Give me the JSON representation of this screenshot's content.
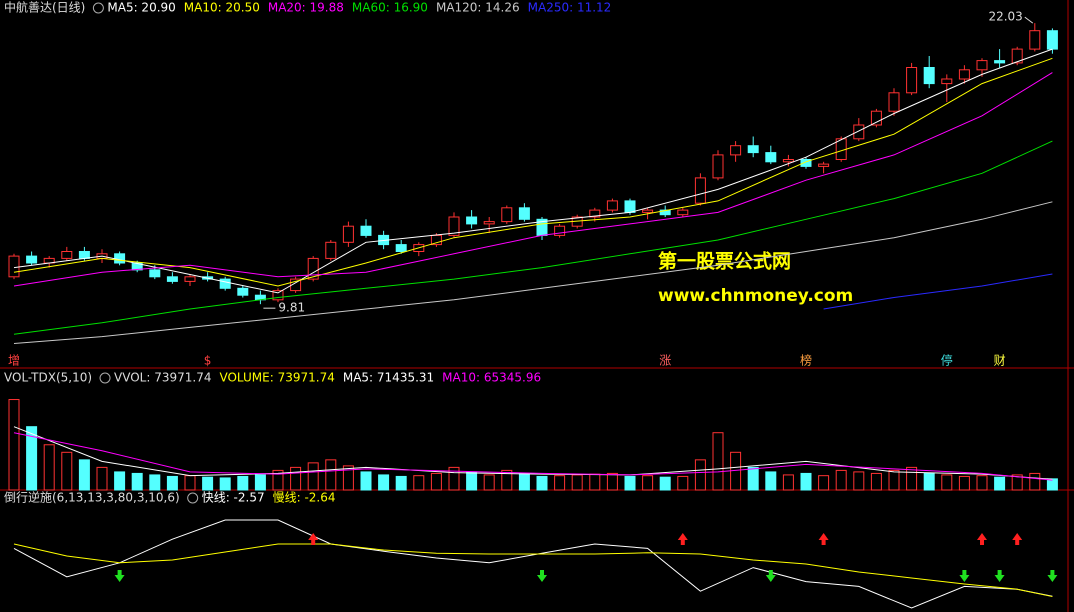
{
  "chart_data": [
    {
      "type": "candlestick",
      "title": "中航善达(日线)",
      "up_color": "#ff3232",
      "down_color": "#54ffff",
      "ylim": [
        7.6,
        22.6
      ],
      "candles": [
        [
          11.0,
          12.0,
          10.9,
          11.9
        ],
        [
          11.9,
          12.1,
          11.5,
          11.6
        ],
        [
          11.6,
          11.9,
          11.4,
          11.8
        ],
        [
          11.8,
          12.3,
          11.7,
          12.1
        ],
        [
          12.1,
          12.3,
          11.7,
          11.8
        ],
        [
          11.8,
          12.2,
          11.6,
          12.0
        ],
        [
          12.0,
          12.1,
          11.5,
          11.6
        ],
        [
          11.6,
          11.7,
          11.2,
          11.3
        ],
        [
          11.3,
          11.5,
          10.9,
          11.0
        ],
        [
          11.0,
          11.2,
          10.7,
          10.8
        ],
        [
          10.8,
          11.1,
          10.6,
          11.0
        ],
        [
          11.0,
          11.2,
          10.8,
          10.9
        ],
        [
          10.9,
          11.0,
          10.4,
          10.5
        ],
        [
          10.5,
          10.6,
          10.1,
          10.2
        ],
        [
          10.2,
          10.4,
          9.81,
          10.0
        ],
        [
          10.0,
          10.5,
          9.9,
          10.4
        ],
        [
          10.4,
          11.0,
          10.3,
          10.9
        ],
        [
          10.9,
          11.9,
          10.8,
          11.8
        ],
        [
          11.8,
          12.6,
          11.7,
          12.5
        ],
        [
          12.5,
          13.4,
          12.3,
          13.2
        ],
        [
          13.2,
          13.5,
          12.7,
          12.8
        ],
        [
          12.8,
          13.0,
          12.2,
          12.4
        ],
        [
          12.4,
          12.6,
          12.0,
          12.1
        ],
        [
          12.1,
          12.5,
          11.9,
          12.4
        ],
        [
          12.4,
          12.9,
          12.3,
          12.8
        ],
        [
          12.8,
          13.8,
          12.7,
          13.6
        ],
        [
          13.6,
          13.9,
          13.1,
          13.3
        ],
        [
          13.3,
          13.6,
          12.9,
          13.4
        ],
        [
          13.4,
          14.1,
          13.3,
          14.0
        ],
        [
          14.0,
          14.2,
          13.4,
          13.5
        ],
        [
          13.5,
          13.6,
          12.6,
          12.8
        ],
        [
          12.8,
          13.3,
          12.7,
          13.2
        ],
        [
          13.2,
          13.7,
          13.1,
          13.6
        ],
        [
          13.6,
          14.0,
          13.4,
          13.9
        ],
        [
          13.9,
          14.4,
          13.8,
          14.3
        ],
        [
          14.3,
          14.4,
          13.7,
          13.8
        ],
        [
          13.8,
          14.0,
          13.5,
          13.9
        ],
        [
          13.9,
          14.1,
          13.6,
          13.7
        ],
        [
          13.7,
          14.0,
          13.6,
          13.9
        ],
        [
          14.2,
          15.5,
          14.1,
          15.3
        ],
        [
          15.3,
          16.5,
          15.2,
          16.3
        ],
        [
          16.3,
          16.9,
          16.0,
          16.7
        ],
        [
          16.7,
          17.1,
          16.2,
          16.4
        ],
        [
          16.4,
          16.7,
          15.9,
          16.0
        ],
        [
          16.0,
          16.3,
          15.8,
          16.1
        ],
        [
          16.1,
          16.2,
          15.7,
          15.8
        ],
        [
          15.8,
          16.0,
          15.5,
          15.9
        ],
        [
          16.1,
          17.1,
          16.0,
          17.0
        ],
        [
          17.0,
          17.9,
          16.9,
          17.6
        ],
        [
          17.6,
          18.3,
          17.5,
          18.2
        ],
        [
          18.2,
          19.2,
          18.0,
          19.0
        ],
        [
          19.0,
          20.3,
          18.9,
          20.1
        ],
        [
          20.1,
          20.6,
          19.2,
          19.4
        ],
        [
          19.4,
          19.8,
          18.6,
          19.6
        ],
        [
          19.6,
          20.2,
          19.4,
          20.0
        ],
        [
          20.0,
          20.5,
          19.7,
          20.4
        ],
        [
          20.4,
          20.9,
          20.1,
          20.3
        ],
        [
          20.3,
          21.0,
          20.2,
          20.9
        ],
        [
          20.9,
          22.03,
          20.8,
          21.7
        ],
        [
          21.7,
          21.8,
          20.7,
          20.9
        ]
      ],
      "series": [
        {
          "name": "MA5",
          "label": "MA5: 20.90",
          "color": "#ffffff",
          "x": [
            0,
            5,
            10,
            15,
            20,
            25,
            30,
            35,
            40,
            45,
            50,
            55,
            59
          ],
          "values": [
            11.4,
            11.9,
            11.1,
            10.3,
            12.5,
            12.9,
            13.4,
            13.8,
            14.8,
            16.2,
            18.1,
            19.8,
            20.9
          ]
        },
        {
          "name": "MA10",
          "label": "MA10: 20.50",
          "color": "#ffff00",
          "x": [
            0,
            5,
            10,
            15,
            20,
            25,
            30,
            35,
            40,
            45,
            50,
            55,
            59
          ],
          "values": [
            11.2,
            11.8,
            11.4,
            10.6,
            11.6,
            12.7,
            13.3,
            13.6,
            14.3,
            16.0,
            17.2,
            19.4,
            20.5
          ]
        },
        {
          "name": "MA20",
          "label": "MA20: 19.88",
          "color": "#ff00ff",
          "x": [
            0,
            5,
            10,
            15,
            20,
            25,
            30,
            35,
            40,
            45,
            50,
            55,
            59
          ],
          "values": [
            10.6,
            11.2,
            11.5,
            11.0,
            11.2,
            12.0,
            12.8,
            13.3,
            13.8,
            15.2,
            16.3,
            18.0,
            19.88
          ]
        },
        {
          "name": "MA60",
          "label": "MA60: 16.90",
          "color": "#00e000",
          "x": [
            0,
            5,
            10,
            15,
            20,
            25,
            30,
            35,
            40,
            45,
            50,
            55,
            59
          ],
          "values": [
            8.5,
            9.0,
            9.6,
            10.1,
            10.5,
            10.9,
            11.4,
            12.0,
            12.6,
            13.5,
            14.4,
            15.5,
            16.9
          ]
        },
        {
          "name": "MA120",
          "label": "MA120: 14.26",
          "color": "#c8c8c8",
          "x": [
            0,
            5,
            10,
            15,
            20,
            25,
            30,
            35,
            40,
            45,
            50,
            55,
            59
          ],
          "values": [
            8.1,
            8.4,
            8.8,
            9.2,
            9.6,
            10.0,
            10.5,
            11.0,
            11.5,
            12.1,
            12.7,
            13.5,
            14.26
          ]
        },
        {
          "name": "MA250",
          "label": "MA250: 11.12",
          "color": "#2a2aff",
          "x": [
            46,
            50,
            55,
            59
          ],
          "values": [
            9.6,
            10.1,
            10.6,
            11.12
          ]
        }
      ],
      "high_label": 22.03,
      "high_index": 58,
      "low_label": 9.81,
      "low_index": 14,
      "markers": [
        {
          "text": "增",
          "x": 0,
          "color": "#ff4040"
        },
        {
          "text": "$",
          "x": 11,
          "color": "#ff4040"
        },
        {
          "text": "涨",
          "x": 37,
          "color": "#ff6060"
        },
        {
          "text": "榜",
          "x": 45,
          "color": "#ffa040"
        },
        {
          "text": "停",
          "x": 53,
          "color": "#40e0e0"
        },
        {
          "text": "财",
          "x": 56,
          "color": "#ffff40"
        }
      ]
    },
    {
      "type": "bar",
      "title": "VOL-TDX(5,10)",
      "readout": "VVOL: 73971.74",
      "ylim": [
        0,
        650000
      ],
      "series": [
        {
          "name": "VOLUME",
          "label": "VOLUME: 73971.74",
          "color": "#ffff00",
          "values": [
            600000,
            420000,
            300000,
            250000,
            200000,
            150000,
            120000,
            110000,
            100000,
            90000,
            95000,
            85000,
            80000,
            90000,
            100000,
            130000,
            150000,
            180000,
            200000,
            160000,
            120000,
            100000,
            90000,
            95000,
            110000,
            150000,
            120000,
            100000,
            130000,
            110000,
            90000,
            95000,
            100000,
            105000,
            110000,
            90000,
            95000,
            85000,
            90000,
            200000,
            380000,
            250000,
            150000,
            120000,
            100000,
            110000,
            95000,
            130000,
            120000,
            110000,
            130000,
            150000,
            110000,
            100000,
            90000,
            95000,
            85000,
            100000,
            110000,
            73971.74
          ]
        },
        {
          "name": "MA5",
          "label": "MA5: 71435.31",
          "color": "#ffffff",
          "x": [
            0,
            5,
            10,
            15,
            20,
            25,
            30,
            35,
            40,
            45,
            50,
            55,
            59
          ],
          "values": [
            420000,
            190000,
            95000,
            110000,
            150000,
            115000,
            105000,
            100000,
            140000,
            190000,
            120000,
            105000,
            71435.31
          ]
        },
        {
          "name": "MA10",
          "label": "MA10: 65345.96",
          "color": "#ff00ff",
          "x": [
            0,
            5,
            10,
            15,
            20,
            25,
            30,
            35,
            40,
            45,
            50,
            55,
            59
          ],
          "values": [
            380000,
            260000,
            120000,
            105000,
            140000,
            125000,
            110000,
            100000,
            120000,
            170000,
            140000,
            110000,
            65345.96
          ]
        }
      ]
    },
    {
      "type": "line",
      "title": "倒行逆施(6,13,13,3,80,3,10,6)",
      "ylim": [
        -6,
        20
      ],
      "series": [
        {
          "name": "快线",
          "label": "快线: -2.57",
          "color": "#ffffff",
          "x": [
            0,
            3,
            6,
            9,
            12,
            15,
            18,
            21,
            24,
            27,
            30,
            33,
            36,
            39,
            42,
            45,
            48,
            51,
            54,
            57,
            59
          ],
          "values": [
            9.4,
            2.3,
            5.8,
            11.7,
            16.5,
            16.5,
            10.5,
            8.7,
            7.0,
            5.8,
            8.2,
            10.5,
            9.4,
            -1.3,
            4.6,
            1.1,
            -0.1,
            -5.5,
            -0.1,
            -0.8,
            -2.57
          ]
        },
        {
          "name": "慢线",
          "label": "慢线: -2.64",
          "color": "#ffff00",
          "x": [
            0,
            3,
            6,
            9,
            12,
            15,
            18,
            21,
            24,
            27,
            30,
            33,
            36,
            39,
            42,
            45,
            48,
            51,
            54,
            57,
            59
          ],
          "values": [
            10.5,
            7.5,
            5.8,
            6.5,
            8.5,
            10.5,
            10.5,
            9.0,
            8.2,
            8.0,
            8.0,
            8.0,
            8.3,
            8.0,
            6.5,
            5.5,
            3.5,
            2.0,
            0.5,
            -0.8,
            -2.64
          ]
        }
      ],
      "buy": [
        17,
        38,
        46,
        55,
        57
      ],
      "sell": [
        6,
        30,
        43,
        54,
        56,
        59
      ],
      "buy_color": "#ff2020",
      "sell_color": "#20e020"
    }
  ],
  "watermark": {
    "title": "第一股票公式网",
    "url": "www.chnmoney.com"
  }
}
